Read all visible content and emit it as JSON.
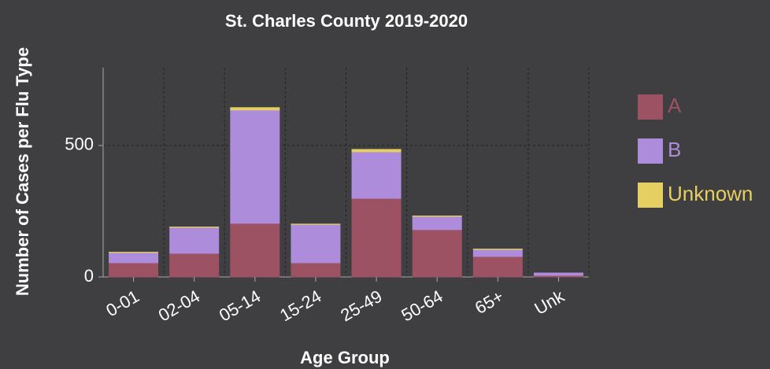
{
  "chart_data": {
    "type": "stacked_bar",
    "title": "St. Charles County 2019-2020",
    "xlabel": "Age Group",
    "ylabel": "Number of Cases per Flu Type",
    "categories": [
      "0-01",
      "02-04",
      "05-14",
      "15-24",
      "25-49",
      "50-64",
      "65+",
      "Unk"
    ],
    "series": [
      {
        "name": "A",
        "color": "#9c5263",
        "values": [
          54,
          90,
          204,
          54,
          299,
          180,
          78,
          6
        ]
      },
      {
        "name": "B",
        "color": "#ae8cdc",
        "values": [
          39,
          99,
          431,
          146,
          177,
          51,
          27,
          9
        ]
      },
      {
        "name": "Unknown",
        "color": "#e6cf62",
        "values": [
          1,
          1,
          9,
          1,
          9,
          1,
          1,
          0
        ]
      }
    ],
    "ylim": [
      0,
      796
    ],
    "yticks": [
      0,
      500
    ],
    "grid": true
  }
}
